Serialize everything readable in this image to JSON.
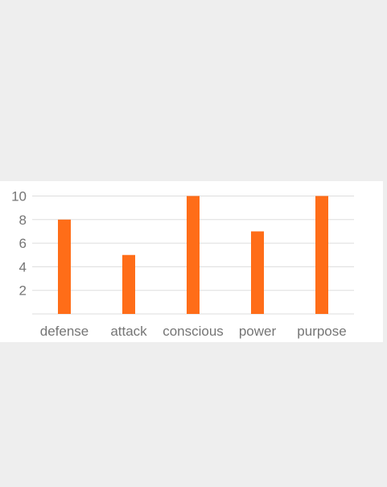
{
  "chart_data": {
    "type": "bar",
    "categories": [
      "defense",
      "attack",
      "conscious",
      "power",
      "purpose"
    ],
    "values": [
      8,
      5,
      10,
      7,
      10
    ],
    "ylim": [
      0,
      10
    ],
    "yticks": [
      2,
      4,
      6,
      8,
      10
    ],
    "grid": true,
    "legend": "none",
    "bar_color": "#ff6d18"
  }
}
